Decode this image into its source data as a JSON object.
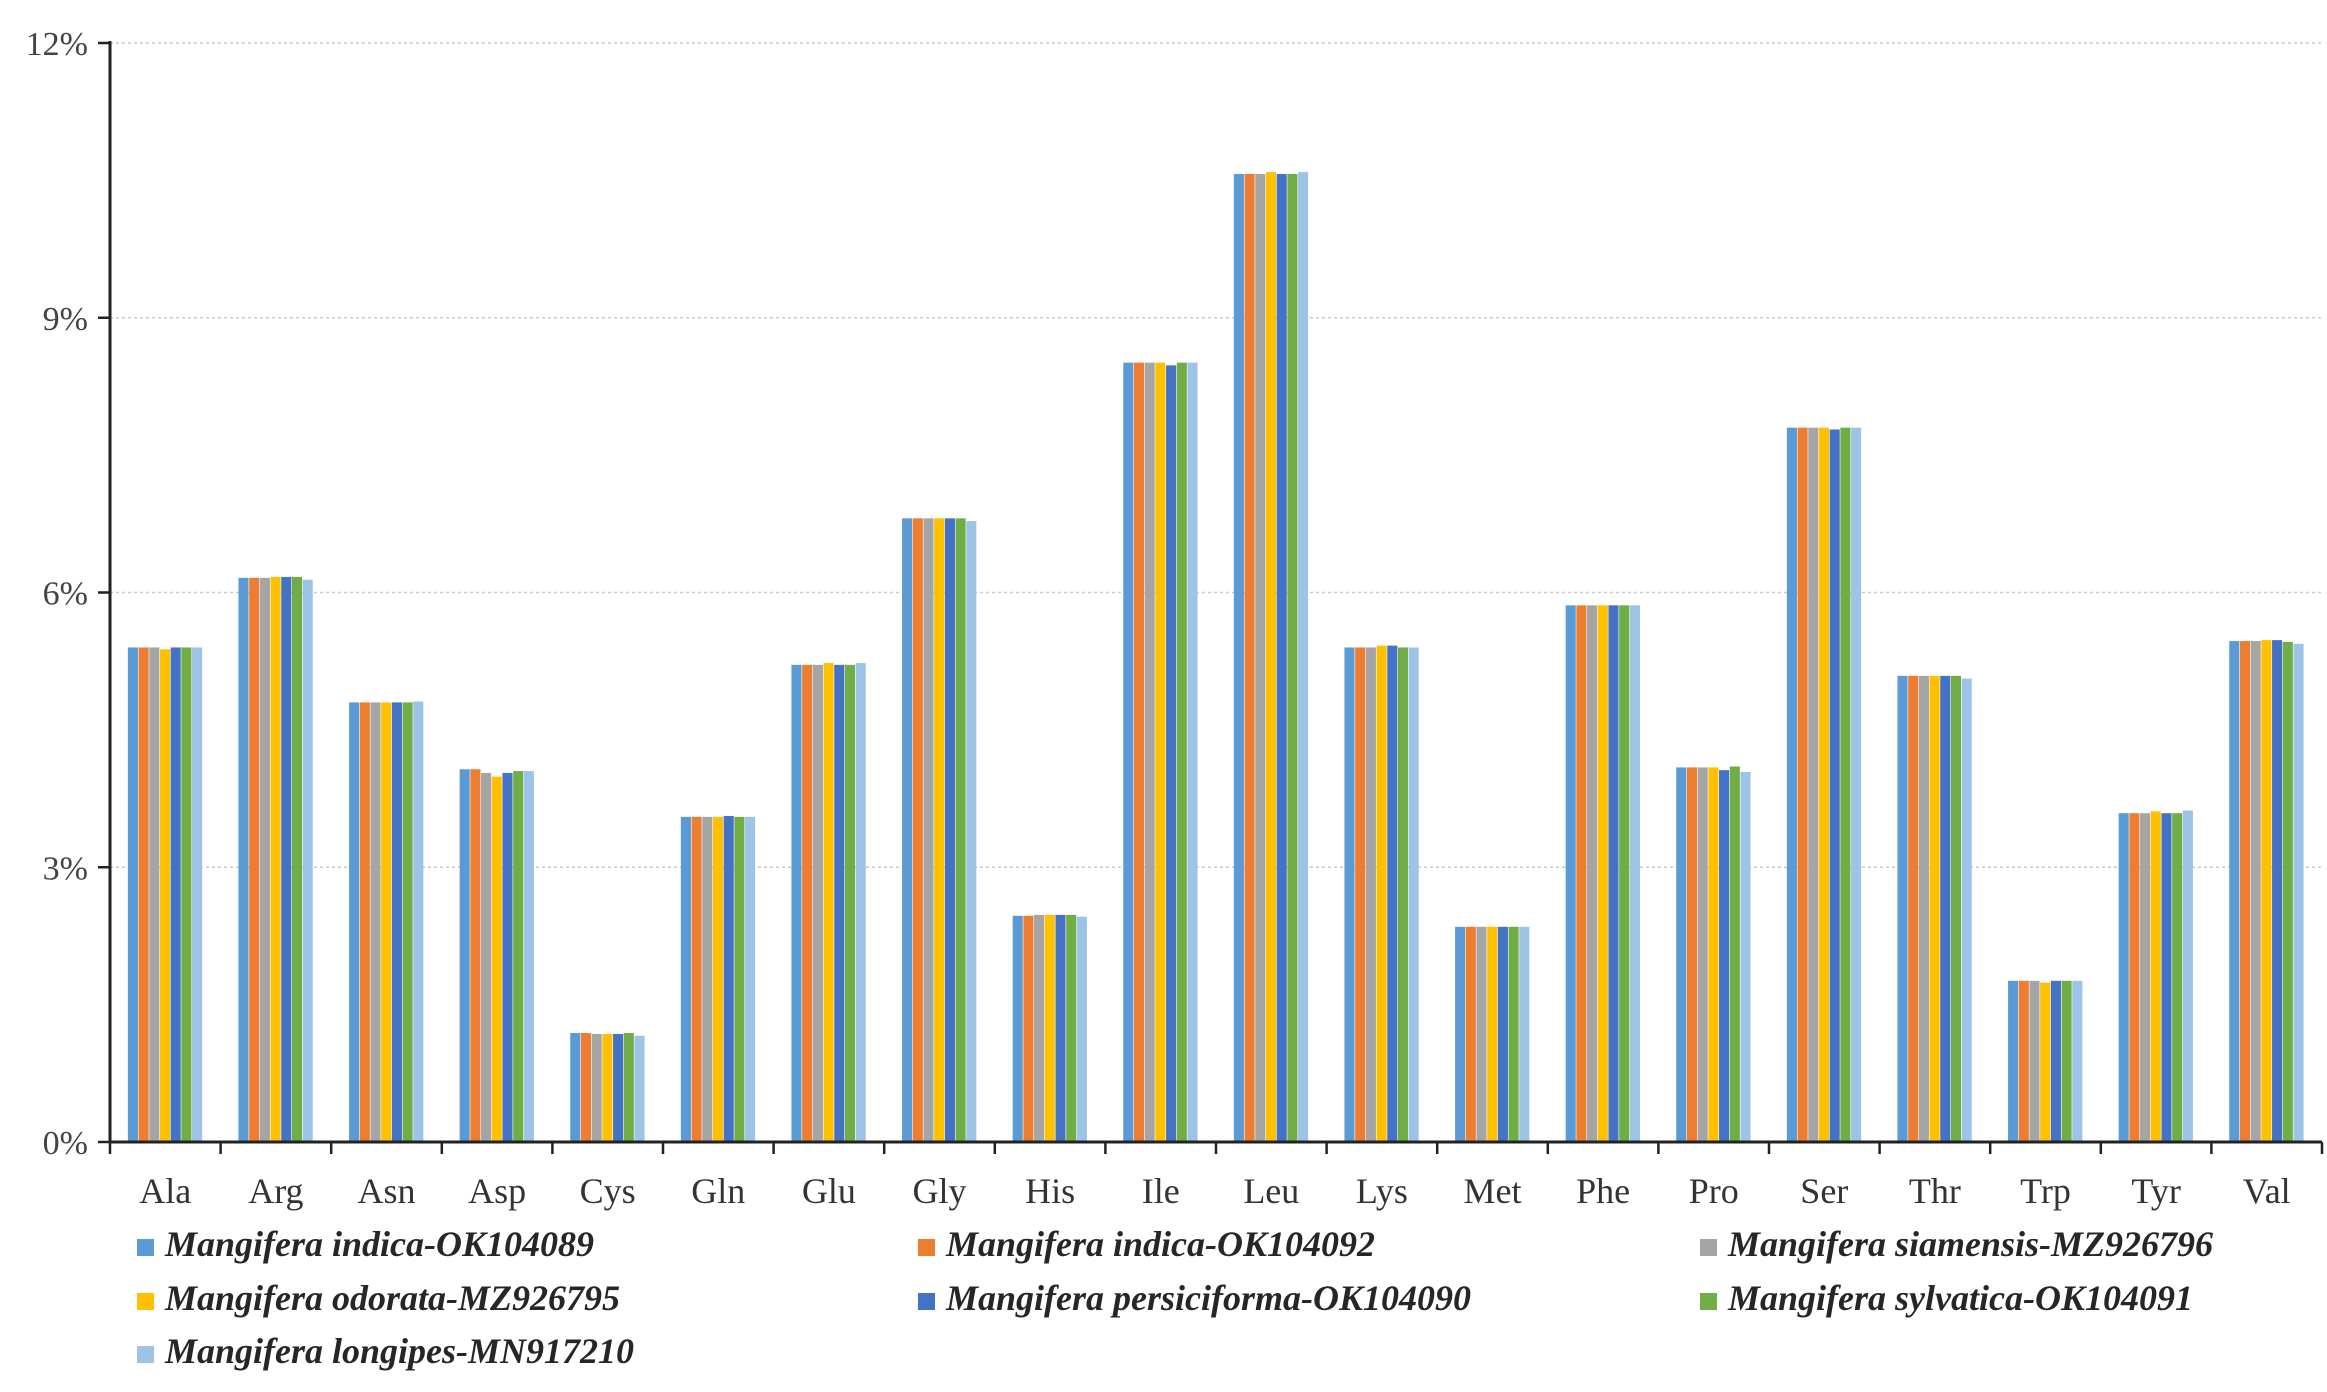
{
  "chart_data": {
    "type": "bar",
    "title": "",
    "xlabel": "",
    "ylabel": "",
    "ylim": [
      0,
      12
    ],
    "yticks": [
      0,
      3,
      6,
      9,
      12
    ],
    "ytick_labels": [
      "0%",
      "3%",
      "6%",
      "9%",
      "12%"
    ],
    "grid": true,
    "legend_position": "bottom",
    "categories": [
      "Ala",
      "Arg",
      "Asn",
      "Asp",
      "Cys",
      "Gln",
      "Glu",
      "Gly",
      "His",
      "Ile",
      "Leu",
      "Lys",
      "Met",
      "Phe",
      "Pro",
      "Ser",
      "Thr",
      "Trp",
      "Tyr",
      "Val"
    ],
    "series": [
      {
        "name": "Mangifera indica-OK104089",
        "color": "#5B9BD5",
        "values": [
          5.4,
          6.16,
          4.8,
          4.07,
          1.19,
          3.55,
          5.21,
          6.81,
          2.47,
          8.51,
          10.57,
          5.4,
          2.35,
          5.86,
          4.09,
          7.8,
          5.09,
          1.76,
          3.59,
          5.47
        ]
      },
      {
        "name": "Mangifera indica-OK104092",
        "color": "#ED7D31",
        "values": [
          5.4,
          6.16,
          4.8,
          4.07,
          1.19,
          3.55,
          5.21,
          6.81,
          2.47,
          8.51,
          10.57,
          5.4,
          2.35,
          5.86,
          4.09,
          7.8,
          5.09,
          1.76,
          3.59,
          5.47
        ]
      },
      {
        "name": "Mangifera siamensis-MZ926796",
        "color": "#A5A5A5",
        "values": [
          5.4,
          6.16,
          4.8,
          4.03,
          1.18,
          3.55,
          5.21,
          6.81,
          2.48,
          8.51,
          10.57,
          5.4,
          2.35,
          5.86,
          4.09,
          7.8,
          5.09,
          1.76,
          3.59,
          5.47
        ]
      },
      {
        "name": "Mangifera odorata-MZ926795",
        "color": "#FFC000",
        "values": [
          5.38,
          6.17,
          4.8,
          3.99,
          1.18,
          3.55,
          5.23,
          6.81,
          2.48,
          8.51,
          10.59,
          5.42,
          2.35,
          5.86,
          4.09,
          7.8,
          5.09,
          1.74,
          3.61,
          5.48
        ]
      },
      {
        "name": "Mangifera persiciforma-OK104090",
        "color": "#4472C4",
        "values": [
          5.4,
          6.17,
          4.8,
          4.03,
          1.18,
          3.56,
          5.21,
          6.81,
          2.48,
          8.48,
          10.57,
          5.42,
          2.35,
          5.86,
          4.06,
          7.78,
          5.09,
          1.76,
          3.59,
          5.48
        ]
      },
      {
        "name": "Mangifera sylvatica-OK104091",
        "color": "#70AD47",
        "values": [
          5.4,
          6.17,
          4.8,
          4.05,
          1.19,
          3.55,
          5.21,
          6.81,
          2.48,
          8.51,
          10.57,
          5.4,
          2.35,
          5.86,
          4.1,
          7.8,
          5.09,
          1.76,
          3.59,
          5.46
        ]
      },
      {
        "name": "Mangifera longipes-MN917210",
        "color": "#9DC3E6",
        "values": [
          5.4,
          6.14,
          4.81,
          4.05,
          1.16,
          3.55,
          5.23,
          6.78,
          2.46,
          8.51,
          10.59,
          5.4,
          2.35,
          5.86,
          4.04,
          7.8,
          5.06,
          1.76,
          3.62,
          5.44
        ]
      }
    ]
  }
}
